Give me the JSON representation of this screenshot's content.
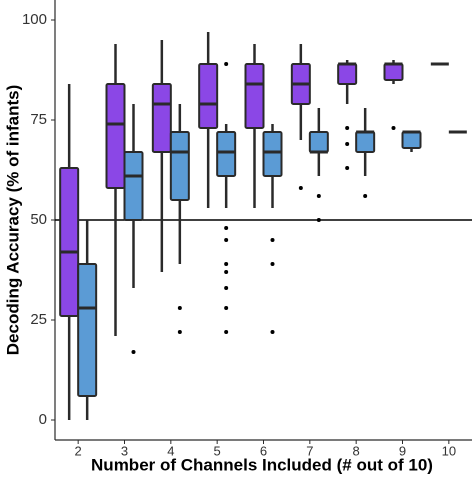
{
  "chart_data": {
    "type": "box",
    "x_label": "Number of Channels Included (# out of 10)",
    "y_label": "Decoding Accuracy (% of infants)",
    "categories": [
      "2",
      "3",
      "4",
      "5",
      "6",
      "7",
      "8",
      "9",
      "10"
    ],
    "ylim": [
      -5,
      105
    ],
    "yticks": [
      0,
      25,
      50,
      75,
      100
    ],
    "reference_line": 50,
    "series": [
      {
        "color": "#8b47e6",
        "boxes": [
          {
            "min": 0,
            "q1": 26,
            "median": 42,
            "q3": 63,
            "max": 84,
            "outliers": []
          },
          {
            "min": 21,
            "q1": 58,
            "median": 74,
            "q3": 84,
            "max": 94,
            "outliers": []
          },
          {
            "min": 37,
            "q1": 67,
            "median": 79,
            "q3": 84,
            "max": 95,
            "outliers": []
          },
          {
            "min": 53,
            "q1": 73,
            "median": 79,
            "q3": 89,
            "max": 97,
            "outliers": []
          },
          {
            "min": 53,
            "q1": 73,
            "median": 84,
            "q3": 89,
            "max": 94,
            "outliers": []
          },
          {
            "min": 70,
            "q1": 79,
            "median": 84,
            "q3": 89,
            "max": 94,
            "outliers": [
              58
            ]
          },
          {
            "min": 79,
            "q1": 84,
            "median": 89,
            "q3": 89,
            "max": 90,
            "outliers": [
              73,
              69,
              63
            ]
          },
          {
            "min": 84,
            "q1": 85,
            "median": 89,
            "q3": 89,
            "max": 90,
            "outliers": [
              73
            ]
          },
          {
            "min": 89,
            "q1": 89,
            "median": 89,
            "q3": 89,
            "max": 89,
            "outliers": []
          }
        ]
      },
      {
        "color": "#5b9bd5",
        "boxes": [
          {
            "min": 0,
            "q1": 6,
            "median": 28,
            "q3": 39,
            "max": 50,
            "outliers": []
          },
          {
            "min": 33,
            "q1": 50,
            "median": 61,
            "q3": 67,
            "max": 79,
            "outliers": [
              17
            ]
          },
          {
            "min": 39,
            "q1": 55,
            "median": 67,
            "q3": 72,
            "max": 79,
            "outliers": [
              28,
              22
            ]
          },
          {
            "min": 53,
            "q1": 61,
            "median": 67,
            "q3": 72,
            "max": 74,
            "outliers": [
              89,
              48,
              45,
              39,
              37,
              33,
              28,
              22
            ]
          },
          {
            "min": 53,
            "q1": 61,
            "median": 67,
            "q3": 72,
            "max": 74,
            "outliers": [
              45,
              39,
              22
            ]
          },
          {
            "min": 61,
            "q1": 67,
            "median": 67,
            "q3": 72,
            "max": 78,
            "outliers": [
              56,
              50
            ]
          },
          {
            "min": 61,
            "q1": 67,
            "median": 72,
            "q3": 72,
            "max": 78,
            "outliers": [
              56
            ]
          },
          {
            "min": 67,
            "q1": 68,
            "median": 72,
            "q3": 72,
            "max": 72,
            "outliers": []
          },
          {
            "min": 72,
            "q1": 72,
            "median": 72,
            "q3": 72,
            "max": 72,
            "outliers": []
          }
        ]
      }
    ]
  }
}
